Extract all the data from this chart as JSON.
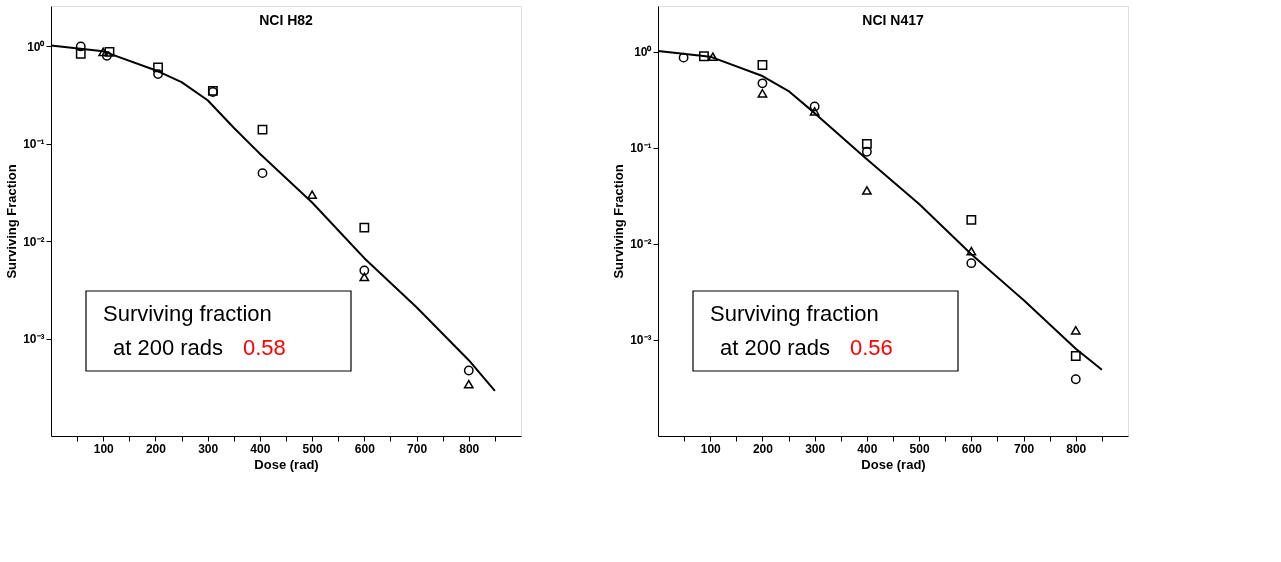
{
  "chart_data": [
    {
      "type": "scatter",
      "title": "NCI H82",
      "xlabel": "Dose (rad)",
      "ylabel": "Surviving Fraction",
      "log": "y",
      "grid": false,
      "xlim": [
        0,
        900
      ],
      "ylim": [
        0.0001,
        2.6
      ],
      "xticks": [
        {
          "value": 50,
          "label": null
        },
        100,
        {
          "value": 150,
          "label": null
        },
        200,
        {
          "value": 250,
          "label": null
        },
        300,
        {
          "value": 350,
          "label": null
        },
        400,
        {
          "value": 450,
          "label": null
        },
        500,
        {
          "value": 550,
          "label": null
        },
        600,
        {
          "value": 650,
          "label": null
        },
        700,
        {
          "value": 750,
          "label": null
        },
        800,
        {
          "value": 850,
          "label": null
        }
      ],
      "yticks": [
        {
          "value": 1,
          "label": "10⁰"
        },
        {
          "value": 0.1,
          "label": "10⁻¹"
        },
        {
          "value": 0.01,
          "label": "10⁻²"
        },
        {
          "value": 0.001,
          "label": "10⁻³"
        }
      ],
      "annotations": [
        "Surviving fraction",
        "at 200 rads",
        "0.58"
      ],
      "series": [
        {
          "marker": "circle",
          "color": "#000000",
          "x": [
            57,
            107,
            205,
            310,
            405,
            600,
            800
          ],
          "values": [
            1.0,
            0.8,
            0.52,
            0.34,
            0.05,
            0.005,
            0.00047
          ]
        },
        {
          "marker": "square",
          "color": "#000000",
          "x": [
            57,
            112,
            205,
            310,
            405,
            600
          ],
          "values": [
            0.84,
            0.88,
            0.61,
            0.35,
            0.14,
            0.0138
          ]
        },
        {
          "marker": "triangle",
          "color": "#000000",
          "x": [
            100,
            500,
            600,
            800
          ],
          "values": [
            0.88,
            0.03,
            0.0043,
            0.00034
          ]
        },
        {
          "type": "line",
          "marker": "none",
          "color": "#000000",
          "x": [
            0,
            100,
            200,
            250,
            300,
            350,
            400,
            500,
            600,
            700,
            800,
            850
          ],
          "values": [
            1.02,
            0.89,
            0.57,
            0.43,
            0.28,
            0.146,
            0.079,
            0.025,
            0.0067,
            0.0021,
            0.0006,
            0.00029
          ]
        }
      ]
    },
    {
      "type": "scatter",
      "title": "NCI N417",
      "xlabel": "Dose (rad)",
      "ylabel": "Surviving Fraction",
      "log": "y",
      "grid": false,
      "xlim": [
        0,
        900
      ],
      "ylim": [
        0.0001,
        3
      ],
      "xticks": [
        {
          "value": 50,
          "label": null
        },
        100,
        {
          "value": 150,
          "label": null
        },
        200,
        {
          "value": 250,
          "label": null
        },
        300,
        {
          "value": 350,
          "label": null
        },
        400,
        {
          "value": 450,
          "label": null
        },
        500,
        {
          "value": 550,
          "label": null
        },
        600,
        {
          "value": 650,
          "label": null
        },
        700,
        {
          "value": 750,
          "label": null
        },
        800,
        {
          "value": 850,
          "label": null
        }
      ],
      "yticks": [
        {
          "value": 1,
          "label": "10⁰"
        },
        {
          "value": 0.1,
          "label": "10⁻¹"
        },
        {
          "value": 0.01,
          "label": "10⁻²"
        },
        {
          "value": 0.001,
          "label": "10⁻³"
        }
      ],
      "annotations": [
        "Surviving fraction",
        "at 200 rads",
        "0.56"
      ],
      "series": [
        {
          "marker": "circle",
          "color": "#000000",
          "x": [
            49,
            200,
            300,
            400,
            600,
            800
          ],
          "values": [
            0.87,
            0.47,
            0.27,
            0.091,
            0.0063,
            0.00039
          ]
        },
        {
          "marker": "square",
          "color": "#000000",
          "x": [
            88,
            200,
            400,
            600,
            800
          ],
          "values": [
            0.9,
            0.73,
            0.11,
            0.0178,
            0.00068
          ]
        },
        {
          "marker": "triangle",
          "color": "#000000",
          "x": [
            105,
            200,
            300,
            400,
            600,
            800
          ],
          "values": [
            0.89,
            0.37,
            0.24,
            0.036,
            0.0084,
            0.00126
          ]
        },
        {
          "type": "line",
          "marker": "none",
          "color": "#000000",
          "x": [
            0,
            100,
            200,
            250,
            300,
            400,
            500,
            600,
            700,
            800,
            850
          ],
          "values": [
            1.02,
            0.89,
            0.56,
            0.39,
            0.23,
            0.076,
            0.026,
            0.0078,
            0.0026,
            0.00081,
            0.00049
          ]
        }
      ]
    }
  ]
}
